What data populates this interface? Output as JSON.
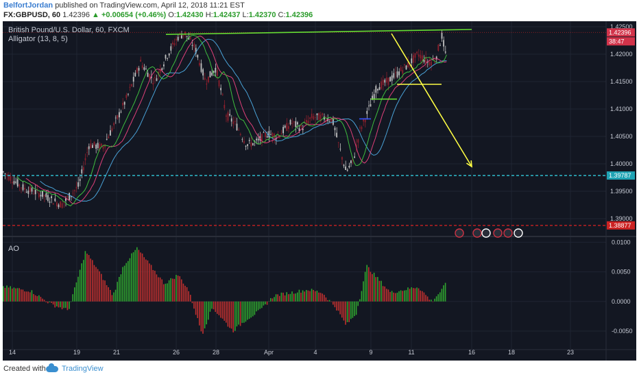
{
  "header": {
    "author": "BelfortJordan",
    "published_text": "published on TradingView.com, April 12, 2018 11:21 EST",
    "symbol": "FX:GBPUSD, 60",
    "last_price": "1.42396",
    "change": "▲ +0.00654 (+0.46%)",
    "open_label": "O:",
    "open": "1.42430",
    "high_label": "H:",
    "high": "1.42437",
    "low_label": "L:",
    "low": "1.42370",
    "close_label": "C:",
    "close": "1.42396"
  },
  "legend": {
    "title": "British Pound/U.S. Dollar, 60, FXCM",
    "indicator": "Alligator (13, 8, 5)",
    "oscillator": "AO"
  },
  "footer": {
    "created_with": "Created with",
    "brand": "TradingView"
  },
  "colors": {
    "background": "#131722",
    "grid": "#1f2433",
    "axis_text": "#c8ccd6",
    "up_candle": "#c2c2c2",
    "down_candle": "#8c1f2c",
    "jaw": "#4aa3d8",
    "teeth": "#e0407a",
    "lips": "#3fbf3f",
    "trendline": "#66dd33",
    "arrow": "#ffff44",
    "cyan_level": "#33ccdd",
    "red_level": "#dd2222",
    "ao_up": "#2fa52f",
    "ao_down": "#c0302f"
  },
  "price_axis": {
    "ticks": [
      "1.42500",
      "1.42000",
      "1.41500",
      "1.41000",
      "1.40500",
      "1.40000",
      "1.39500",
      "1.39000"
    ],
    "current_label": "1.42396",
    "countdown_label": "38:47",
    "cyan_label": "1.39787",
    "red_label": "1.38877"
  },
  "ao_axis": {
    "ticks": [
      "0.0100",
      "0.0050",
      "0.0000",
      "-0.0050"
    ]
  },
  "time_axis": {
    "labels": [
      "14",
      "19",
      "21",
      "26",
      "28",
      "Apr",
      "4",
      "9",
      "11",
      "16",
      "18",
      "23"
    ]
  },
  "chart_data": {
    "type": "candlestick",
    "title": "British Pound/U.S. Dollar, 60, FXCM",
    "price_range": [
      1.387,
      1.4255
    ],
    "ao_range": [
      -0.008,
      0.0105
    ],
    "levels": [
      {
        "price": 1.42396,
        "style": "dotted"
      },
      {
        "price": 1.39787,
        "style": "dashed"
      },
      {
        "price": 1.38877,
        "style": "dashed"
      }
    ],
    "trendline": {
      "from": {
        "x_label": "25",
        "price": 1.4236
      },
      "to": {
        "x_label": "16",
        "price": 1.4245
      }
    },
    "support_segments": [
      {
        "from_label": "10",
        "to_label": "12",
        "price": 1.4145
      },
      {
        "from_label": "9",
        "to_label": "10",
        "price": 1.4118
      },
      {
        "from_label": "8",
        "to_label": "9",
        "price": 1.4082
      }
    ],
    "arrow": {
      "from": {
        "x_label": "10",
        "price": 1.422
      },
      "to": {
        "x_label": "16",
        "price": 1.4
      }
    },
    "price_path": [
      [
        0,
        1.3985
      ],
      [
        30,
        1.3955
      ],
      [
        55,
        1.3945
      ],
      [
        85,
        1.3925
      ],
      [
        110,
        1.396
      ],
      [
        125,
        1.4035
      ],
      [
        145,
        1.403
      ],
      [
        165,
        1.408
      ],
      [
        180,
        1.412
      ],
      [
        200,
        1.4185
      ],
      [
        220,
        1.415
      ],
      [
        240,
        1.42
      ],
      [
        255,
        1.4232
      ],
      [
        265,
        1.4238
      ],
      [
        280,
        1.421
      ],
      [
        295,
        1.415
      ],
      [
        310,
        1.4175
      ],
      [
        325,
        1.409
      ],
      [
        340,
        1.407
      ],
      [
        355,
        1.4035
      ],
      [
        370,
        1.404
      ],
      [
        385,
        1.4055
      ],
      [
        400,
        1.405
      ],
      [
        420,
        1.4075
      ],
      [
        435,
        1.4065
      ],
      [
        450,
        1.4085
      ],
      [
        465,
        1.4085
      ],
      [
        480,
        1.408
      ],
      [
        490,
        1.403
      ],
      [
        500,
        1.3985
      ],
      [
        510,
        1.4005
      ],
      [
        520,
        1.406
      ],
      [
        530,
        1.409
      ],
      [
        545,
        1.414
      ],
      [
        560,
        1.415
      ],
      [
        575,
        1.4165
      ],
      [
        590,
        1.418
      ],
      [
        605,
        1.42
      ],
      [
        620,
        1.4185
      ],
      [
        630,
        1.419
      ],
      [
        640,
        1.4235
      ],
      [
        645,
        1.4198
      ]
    ],
    "ao_path": [
      [
        0,
        0.0025
      ],
      [
        40,
        0.0018
      ],
      [
        70,
        -0.0005
      ],
      [
        95,
        -0.0015
      ],
      [
        120,
        0.0085
      ],
      [
        140,
        0.005
      ],
      [
        160,
        0.001
      ],
      [
        175,
        0.006
      ],
      [
        195,
        0.009
      ],
      [
        215,
        0.006
      ],
      [
        235,
        0.003
      ],
      [
        255,
        0.0045
      ],
      [
        270,
        0.002
      ],
      [
        290,
        -0.0055
      ],
      [
        305,
        -0.001
      ],
      [
        320,
        -0.003
      ],
      [
        335,
        -0.005
      ],
      [
        355,
        -0.003
      ],
      [
        375,
        -0.0015
      ],
      [
        395,
        0.001
      ],
      [
        420,
        0.0015
      ],
      [
        445,
        0.002
      ],
      [
        465,
        0.0015
      ],
      [
        485,
        -0.001
      ],
      [
        500,
        -0.004
      ],
      [
        515,
        -0.002
      ],
      [
        530,
        0.006
      ],
      [
        545,
        0.004
      ],
      [
        565,
        0.0015
      ],
      [
        585,
        0.002
      ],
      [
        605,
        0.0025
      ],
      [
        625,
        0.0
      ],
      [
        640,
        0.002
      ],
      [
        645,
        0.003
      ]
    ]
  }
}
